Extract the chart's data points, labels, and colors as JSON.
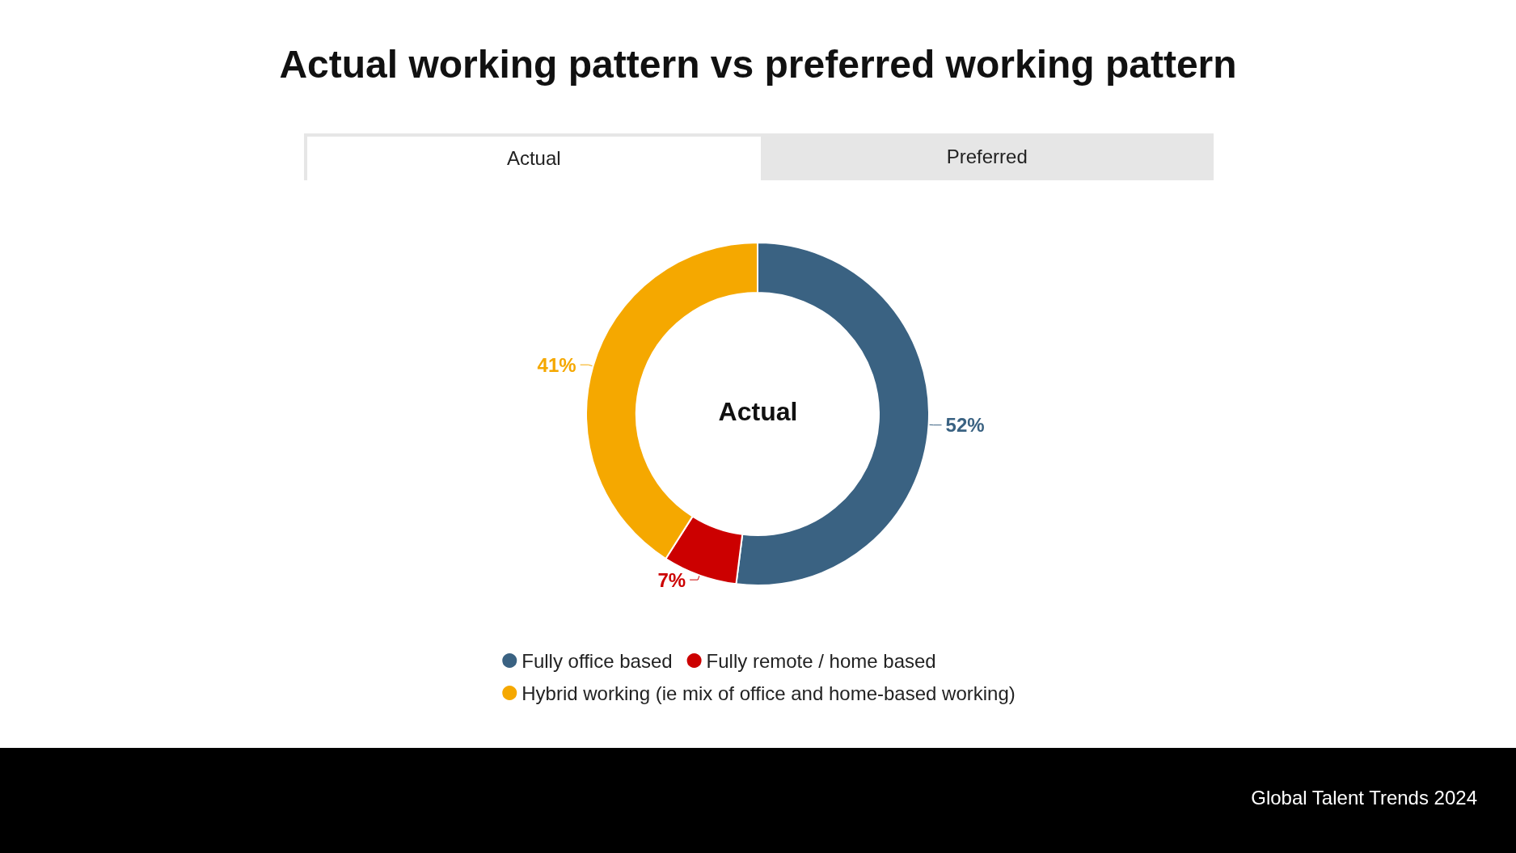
{
  "chart_data": {
    "type": "donut",
    "title": "Actual working pattern vs preferred working pattern",
    "categories": [
      "Fully office based",
      "Fully remote / home based",
      "Hybrid working (ie mix of office and home-based working)"
    ],
    "values": [
      52,
      7,
      41
    ],
    "colors": [
      "#3a6282",
      "#cc0000",
      "#f5a800"
    ],
    "value_labels": [
      "52%",
      "7%",
      "41%"
    ],
    "legend": "bottom",
    "annotations": [
      "Actual",
      "Preferred",
      "Actual",
      "Global Talent Trends 2024"
    ]
  }
}
